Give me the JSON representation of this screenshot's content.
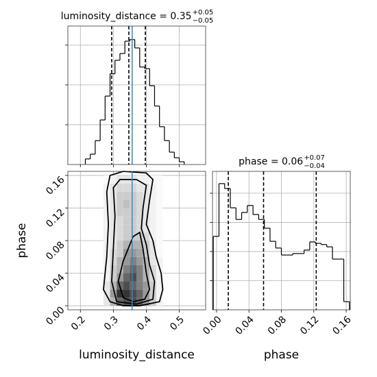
{
  "chart_data": [
    {
      "type": "histogram",
      "title": "luminosity_distance = 0.35",
      "title_upper": "+0.05",
      "title_lower": "−0.05",
      "bins": [
        0.215,
        0.23,
        0.245,
        0.26,
        0.275,
        0.29,
        0.305,
        0.32,
        0.335,
        0.35,
        0.365,
        0.38,
        0.395,
        0.41,
        0.425,
        0.44,
        0.455,
        0.47,
        0.485,
        0.5,
        0.515
      ],
      "counts": [
        0.14,
        0.26,
        0.6,
        1.12,
        1.72,
        2.28,
        2.62,
        2.79,
        3.1,
        3.14,
        2.93,
        2.45,
        2.41,
        1.98,
        1.47,
        0.95,
        0.6,
        0.31,
        0.17,
        0.07
      ],
      "xlim": [
        0.162,
        0.58
      ],
      "xticks": [
        0.2,
        0.3,
        0.4,
        0.5
      ],
      "ylim": [
        0,
        3.48
      ],
      "yticks": [
        1,
        2,
        3
      ],
      "xtick_labels": false,
      "ytick_labels": false,
      "quantiles": [
        0.295,
        0.347,
        0.397
      ],
      "truth": 0.357,
      "color": "#000000",
      "truth_color": "#4682b4",
      "grid": true
    },
    {
      "type": "hist2d",
      "xlabel": "luminosity_distance",
      "ylabel": "phase",
      "xlim": [
        0.162,
        0.58
      ],
      "xticks": [
        0.2,
        0.3,
        0.4,
        0.5
      ],
      "ylim": [
        -0.005,
        0.165
      ],
      "yticks": [
        {
          "value": 0,
          "label": "0.00"
        },
        {
          "value": 0.04,
          "label": "0.04"
        },
        {
          "value": 0.08,
          "label": "0.08"
        },
        {
          "value": 0.12,
          "label": "0.12"
        },
        {
          "value": 0.16,
          "label": "0.16"
        }
      ],
      "density_x": [
        0.27,
        0.29,
        0.31,
        0.33,
        0.35,
        0.37,
        0.39,
        0.41,
        0.43,
        0.45
      ],
      "density_y": [
        0,
        0.01,
        0.02,
        0.03,
        0.04,
        0.05,
        0.06,
        0.07,
        0.08,
        0.09,
        0.1,
        0.11,
        0.12,
        0.13,
        0.14,
        0.15,
        0.16
      ],
      "density": [
        [
          0.1,
          0.3,
          0.6,
          0.7,
          0.7,
          0.6,
          0.4,
          0.2,
          0.05
        ],
        [
          0.1,
          0.4,
          0.8,
          0.8,
          0.7,
          0.6,
          0.4,
          0.2,
          0.05
        ],
        [
          0.1,
          0.3,
          0.6,
          0.7,
          0.6,
          0.5,
          0.4,
          0.2,
          0.05
        ],
        [
          0.05,
          0.2,
          0.4,
          0.6,
          0.7,
          0.5,
          0.3,
          0.15,
          0.05
        ],
        [
          0.05,
          0.2,
          0.3,
          0.5,
          0.6,
          0.5,
          0.3,
          0.15,
          0.05
        ],
        [
          0.05,
          0.15,
          0.3,
          0.4,
          0.5,
          0.4,
          0.3,
          0.1,
          0.05
        ],
        [
          0.05,
          0.15,
          0.2,
          0.4,
          0.4,
          0.35,
          0.2,
          0.1,
          0.02
        ],
        [
          0.05,
          0.1,
          0.2,
          0.3,
          0.3,
          0.3,
          0.2,
          0.1,
          0.02
        ],
        [
          0.05,
          0.1,
          0.15,
          0.2,
          0.2,
          0.2,
          0.15,
          0.05,
          0.02
        ],
        [
          0.05,
          0.1,
          0.15,
          0.2,
          0.2,
          0.15,
          0.1,
          0.05,
          0.02
        ],
        [
          0.05,
          0.1,
          0.15,
          0.2,
          0.2,
          0.15,
          0.1,
          0.05,
          0.02
        ],
        [
          0.05,
          0.1,
          0.2,
          0.2,
          0.2,
          0.15,
          0.1,
          0.05,
          0.02
        ],
        [
          0.05,
          0.1,
          0.2,
          0.25,
          0.2,
          0.15,
          0.1,
          0.05,
          0.02
        ],
        [
          0.05,
          0.1,
          0.2,
          0.2,
          0.2,
          0.15,
          0.1,
          0.05,
          0.02
        ],
        [
          0.05,
          0.1,
          0.15,
          0.15,
          0.15,
          0.1,
          0.1,
          0.05,
          0.02
        ],
        [
          0.02,
          0.05,
          0.1,
          0.1,
          0.1,
          0.05,
          0.05,
          0.02,
          0.02
        ]
      ],
      "contours": [
        {
          "x": [
            0.29,
            0.27,
            0.28,
            0.285,
            0.28,
            0.29,
            0.33,
            0.4,
            0.42,
            0.41,
            0.4,
            0.42,
            0.43,
            0.445,
            0.45,
            0.44,
            0.38,
            0.33
          ],
          "y": [
            0.005,
            0.02,
            0.06,
            0.1,
            0.14,
            0.16,
            0.165,
            0.163,
            0.155,
            0.13,
            0.1,
            0.08,
            0.06,
            0.04,
            0.02,
            0.005,
            0,
            0
          ]
        },
        {
          "x": [
            0.31,
            0.295,
            0.3,
            0.305,
            0.3,
            0.32,
            0.37,
            0.4,
            0.39,
            0.385,
            0.4,
            0.41,
            0.425,
            0.42,
            0.37
          ],
          "y": [
            0.005,
            0.03,
            0.07,
            0.11,
            0.145,
            0.155,
            0.155,
            0.148,
            0.12,
            0.095,
            0.075,
            0.05,
            0.03,
            0.008,
            0.002
          ]
        },
        {
          "x": [
            0.33,
            0.315,
            0.33,
            0.345,
            0.36,
            0.38,
            0.39,
            0.4,
            0.41,
            0.395,
            0.36
          ],
          "y": [
            0.01,
            0.03,
            0.055,
            0.07,
            0.085,
            0.09,
            0.07,
            0.04,
            0.02,
            0.008,
            0.005
          ]
        }
      ],
      "truth": 0.357,
      "truth_color": "#4682b4",
      "grid": true
    },
    {
      "type": "histogram",
      "title": "phase = 0.06",
      "title_upper": "+0.07",
      "title_lower": "−0.04",
      "xlabel": "phase",
      "bins": [
        -0.004,
        0.003,
        0.01,
        0.017,
        0.024,
        0.031,
        0.038,
        0.045,
        0.052,
        0.059,
        0.066,
        0.073,
        0.08,
        0.087,
        0.094,
        0.101,
        0.108,
        0.115,
        0.122,
        0.129,
        0.136,
        0.143,
        0.15,
        0.157,
        0.164
      ],
      "counts": [
        2.52,
        4.33,
        4.16,
        3.5,
        3.1,
        3.34,
        3.58,
        3.27,
        3.1,
        2.8,
        2.35,
        2.12,
        1.88,
        1.88,
        1.93,
        1.93,
        2.05,
        2.33,
        2.28,
        2.24,
        2.16,
        1.74,
        1.74,
        0.28
      ],
      "xlim": [
        -0.005,
        0.165
      ],
      "xticks": [
        {
          "value": 0,
          "label": "0.00"
        },
        {
          "value": 0.04,
          "label": "0.04"
        },
        {
          "value": 0.08,
          "label": "0.08"
        },
        {
          "value": 0.12,
          "label": "0.12"
        },
        {
          "value": 0.16,
          "label": "0.16"
        }
      ],
      "ylim": [
        0,
        4.75
      ],
      "yticks": [
        1,
        2,
        3,
        4
      ],
      "ytick_labels": false,
      "quantiles": [
        0.0145,
        0.058,
        0.123
      ],
      "color": "#000000",
      "grid": true
    }
  ]
}
